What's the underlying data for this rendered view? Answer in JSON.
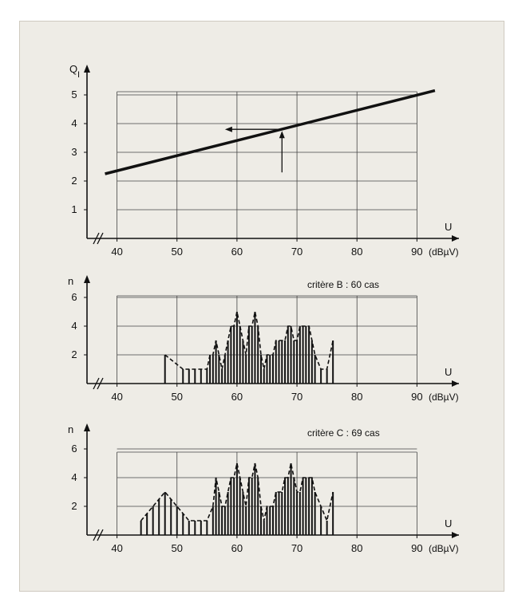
{
  "chart_data": [
    {
      "type": "line",
      "ylabel_main": "Q",
      "ylabel_sub": "I",
      "xlabel": "U",
      "x_unit": "(dBµV)",
      "x_ticks": [
        40,
        50,
        60,
        70,
        80,
        90
      ],
      "y_ticks": [
        1,
        2,
        3,
        4,
        5
      ],
      "xlim": [
        35,
        97
      ],
      "ylim": [
        0,
        5.5
      ],
      "grid": true,
      "series": [
        {
          "x": [
            38,
            93
          ],
          "y": [
            2.25,
            5.15
          ]
        }
      ],
      "annotation": {
        "x": 67.5,
        "y_from": 2.3,
        "y_to": 3.8,
        "x_to": 58
      }
    },
    {
      "type": "bar",
      "title": "critère B : 60 cas",
      "ylabel": "n",
      "xlabel": "U",
      "x_unit": "(dBµV)",
      "x_ticks": [
        40,
        50,
        60,
        70,
        80,
        90
      ],
      "y_ticks": [
        2,
        4,
        6
      ],
      "xlim": [
        35,
        97
      ],
      "ylim": [
        0,
        6.5
      ],
      "grid": true,
      "x": [
        48,
        51,
        52,
        53,
        54,
        55,
        55.5,
        56,
        56.5,
        57,
        57.5,
        58,
        58.5,
        59,
        59.5,
        60,
        60.5,
        61,
        61.5,
        62,
        62.5,
        63,
        63.5,
        64,
        64.5,
        65,
        65.5,
        66,
        66.5,
        67,
        67.5,
        68,
        68.5,
        69,
        69.5,
        70,
        70.5,
        71,
        71.5,
        72,
        72.5,
        73,
        74,
        75,
        76
      ],
      "values": [
        2,
        1,
        1,
        1,
        1,
        1,
        2,
        2,
        3,
        2,
        1,
        2,
        3,
        4,
        4,
        5,
        4,
        3,
        2,
        4,
        4,
        5,
        4,
        2,
        1,
        2,
        2,
        2,
        3,
        3,
        3,
        3,
        4,
        4,
        3,
        3,
        4,
        4,
        4,
        4,
        3,
        2,
        1,
        1,
        3
      ]
    },
    {
      "type": "bar",
      "title": "critère C : 69 cas",
      "ylabel": "n",
      "xlabel": "U",
      "x_unit": "(dBµV)",
      "x_ticks": [
        40,
        50,
        60,
        70,
        80,
        90
      ],
      "y_ticks": [
        2,
        4,
        6
      ],
      "xlim": [
        35,
        97
      ],
      "ylim": [
        0,
        6.5
      ],
      "grid": true,
      "x": [
        44,
        45,
        46,
        47,
        48,
        49,
        50,
        51,
        52,
        53,
        54,
        55,
        56,
        56.5,
        57,
        57.5,
        58,
        58.5,
        59,
        59.5,
        60,
        60.5,
        61,
        61.5,
        62,
        62.5,
        63,
        63.5,
        64,
        64.5,
        65,
        65.5,
        66,
        66.5,
        67,
        67.5,
        68,
        68.5,
        69,
        69.5,
        70,
        70.5,
        71,
        71.5,
        72,
        72.5,
        73,
        74,
        75,
        76
      ],
      "values": [
        1,
        1.5,
        2,
        2.5,
        3,
        2.5,
        2,
        1.5,
        1,
        1,
        1,
        1,
        2,
        4,
        3,
        2,
        2,
        3,
        4,
        4,
        5,
        4,
        3,
        2,
        4,
        4,
        5,
        4,
        2,
        1,
        2,
        2,
        2,
        3,
        3,
        3,
        4,
        4,
        5,
        4,
        3,
        3,
        4,
        4,
        4,
        4,
        3,
        2,
        1,
        3
      ]
    }
  ]
}
